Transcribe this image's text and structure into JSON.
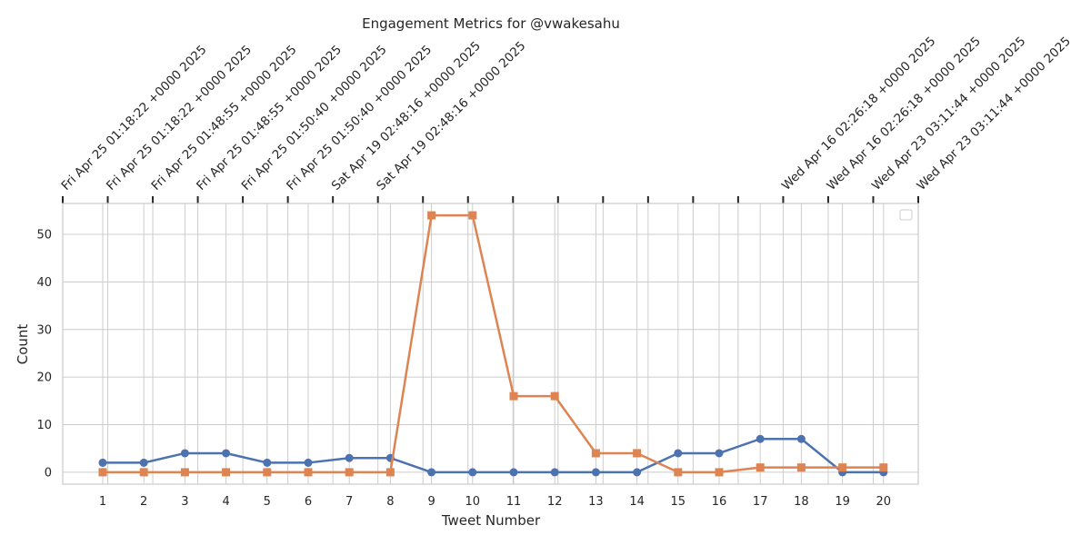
{
  "chart_data": {
    "type": "line",
    "title": "Engagement Metrics for @vwakesahu",
    "xlabel": "Tweet Number",
    "ylabel": "Count",
    "x": [
      1,
      2,
      3,
      4,
      5,
      6,
      7,
      8,
      9,
      10,
      11,
      12,
      13,
      14,
      15,
      16,
      17,
      18,
      19,
      20
    ],
    "ylim": [
      -2.5,
      56.5
    ],
    "yticks": [
      0,
      10,
      20,
      30,
      40,
      50
    ],
    "series": [
      {
        "values": [
          2,
          2,
          4,
          4,
          2,
          2,
          3,
          3,
          0,
          0,
          0,
          0,
          0,
          0,
          4,
          4,
          7,
          7,
          0,
          0
        ],
        "color": "#4c72b0",
        "marker": "circle"
      },
      {
        "values": [
          0,
          0,
          0,
          0,
          0,
          0,
          0,
          0,
          54,
          54,
          16,
          16,
          4,
          4,
          0,
          0,
          1,
          1,
          1,
          1
        ],
        "color": "#dd8452",
        "marker": "square"
      }
    ],
    "top_axis_labels": [
      "Fri Apr 25 01:18:22 +0000 2025",
      "Fri Apr 25 01:18:22 +0000 2025",
      "Fri Apr 25 01:48:55 +0000 2025",
      "Fri Apr 25 01:48:55 +0000 2025",
      "Fri Apr 25 01:50:40 +0000 2025",
      "Fri Apr 25 01:50:40 +0000 2025",
      "Sat Apr 19 02:48:16 +0000 2025",
      "Sat Apr 19 02:48:16 +0000 2025",
      "",
      "",
      "",
      "",
      "",
      "",
      "",
      "",
      "Wed Apr 16 02:26:18 +0000 2025",
      "Wed Apr 16 02:26:18 +0000 2025",
      "Wed Apr 23 03:11:44 +0000 2025",
      "Wed Apr 23 03:11:44 +0000 2025"
    ],
    "grid": true,
    "legend_position": "top-right"
  }
}
